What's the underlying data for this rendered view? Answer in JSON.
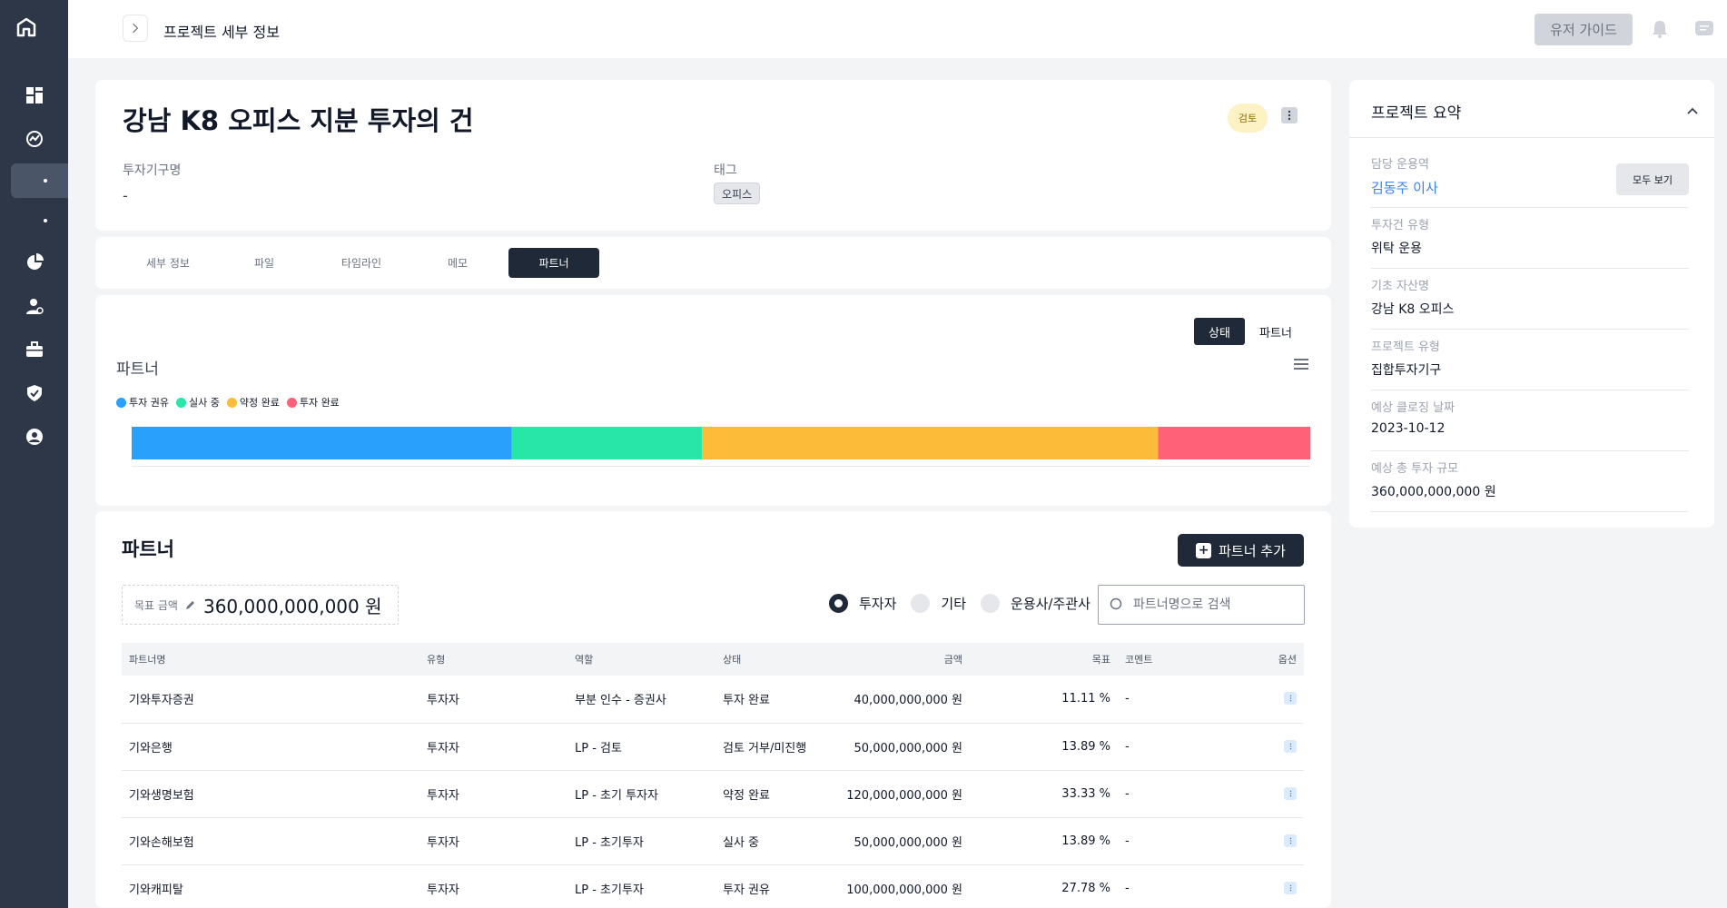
{
  "topbar": {
    "title": "프로젝트 세부 정보",
    "guide_label": "유저 가이드"
  },
  "project": {
    "title": "강남 K8 오피스 지분 투자의 건",
    "status": "검토",
    "fields": [
      {
        "label": "투자기구명",
        "value": "-"
      },
      {
        "label": "태그",
        "value": "오피스"
      }
    ]
  },
  "tabs": [
    "세부 정보",
    "파일",
    "타임라인",
    "메모",
    "파트너"
  ],
  "active_tab": "파트너",
  "chart_toggle": {
    "status_label": "상태",
    "partner_label": "파트너"
  },
  "chart_data": {
    "type": "bar",
    "orientation": "horizontal-stacked",
    "title": "파트너",
    "categories": [
      "파트너"
    ],
    "series": [
      {
        "name": "투자 권유",
        "values": [
          100000000000
        ],
        "color": "#28a0fc"
      },
      {
        "name": "실사 중",
        "values": [
          50000000000
        ],
        "color": "#27e6a8"
      },
      {
        "name": "약정 완료",
        "values": [
          120000000000
        ],
        "color": "#fdbb3a"
      },
      {
        "name": "투자 완료",
        "values": [
          40000000000
        ],
        "color": "#fe6178"
      }
    ],
    "legend": "top-left"
  },
  "partners": {
    "title": "파트너",
    "add_label": "파트너 추가",
    "target_label": "목표 금액",
    "target_value": "360,000,000,000 원",
    "filters": [
      "투자자",
      "기타",
      "운용사/주관사"
    ],
    "selected_filter": "투자자",
    "search_placeholder": "파트너명으로 검색",
    "columns": [
      "파트너명",
      "유형",
      "역할",
      "상태",
      "금액",
      "목표",
      "코멘트",
      "옵션"
    ],
    "rows": [
      {
        "name": "기와투자증권",
        "type": "투자자",
        "role": "부분 인수 - 증권사",
        "status": "투자 완료",
        "amount": "40,000,000,000 원",
        "target": "11.11 %",
        "comment": "-"
      },
      {
        "name": "기와은행",
        "type": "투자자",
        "role": "LP - 검토",
        "status": "검토 거부/미진행",
        "amount": "50,000,000,000 원",
        "target": "13.89 %",
        "comment": "-"
      },
      {
        "name": "기와생명보험",
        "type": "투자자",
        "role": "LP - 초기 투자자",
        "status": "약정 완료",
        "amount": "120,000,000,000 원",
        "target": "33.33 %",
        "comment": "-"
      },
      {
        "name": "기와손해보험",
        "type": "투자자",
        "role": "LP - 초기투자",
        "status": "실사 중",
        "amount": "50,000,000,000 원",
        "target": "13.89 %",
        "comment": "-"
      },
      {
        "name": "기와캐피탈",
        "type": "투자자",
        "role": "LP - 초기투자",
        "status": "투자 권유",
        "amount": "100,000,000,000 원",
        "target": "27.78 %",
        "comment": "-"
      }
    ]
  },
  "summary": {
    "title": "프로젝트 요약",
    "view_all_label": "모두 보기",
    "items": [
      {
        "label": "담당 운용역",
        "value": "김동주 이사"
      },
      {
        "label": "투자건 유형",
        "value": "위탁 운용"
      },
      {
        "label": "기초 자산명",
        "value": "강남 K8 오피스"
      },
      {
        "label": "프로젝트 유형",
        "value": "집합투자기구"
      },
      {
        "label": "예상 클로징 날짜",
        "value": "2023-10-12"
      },
      {
        "label": "예상 총 투자 규모",
        "value": "360,000,000,000 원"
      }
    ]
  },
  "sidebar": {
    "icons": [
      "dashboard-icon",
      "chart-icon",
      "project-icon",
      "subitem-icon",
      "pie-icon",
      "user-add-icon",
      "briefcase-icon",
      "shield-icon",
      "account-icon"
    ]
  }
}
